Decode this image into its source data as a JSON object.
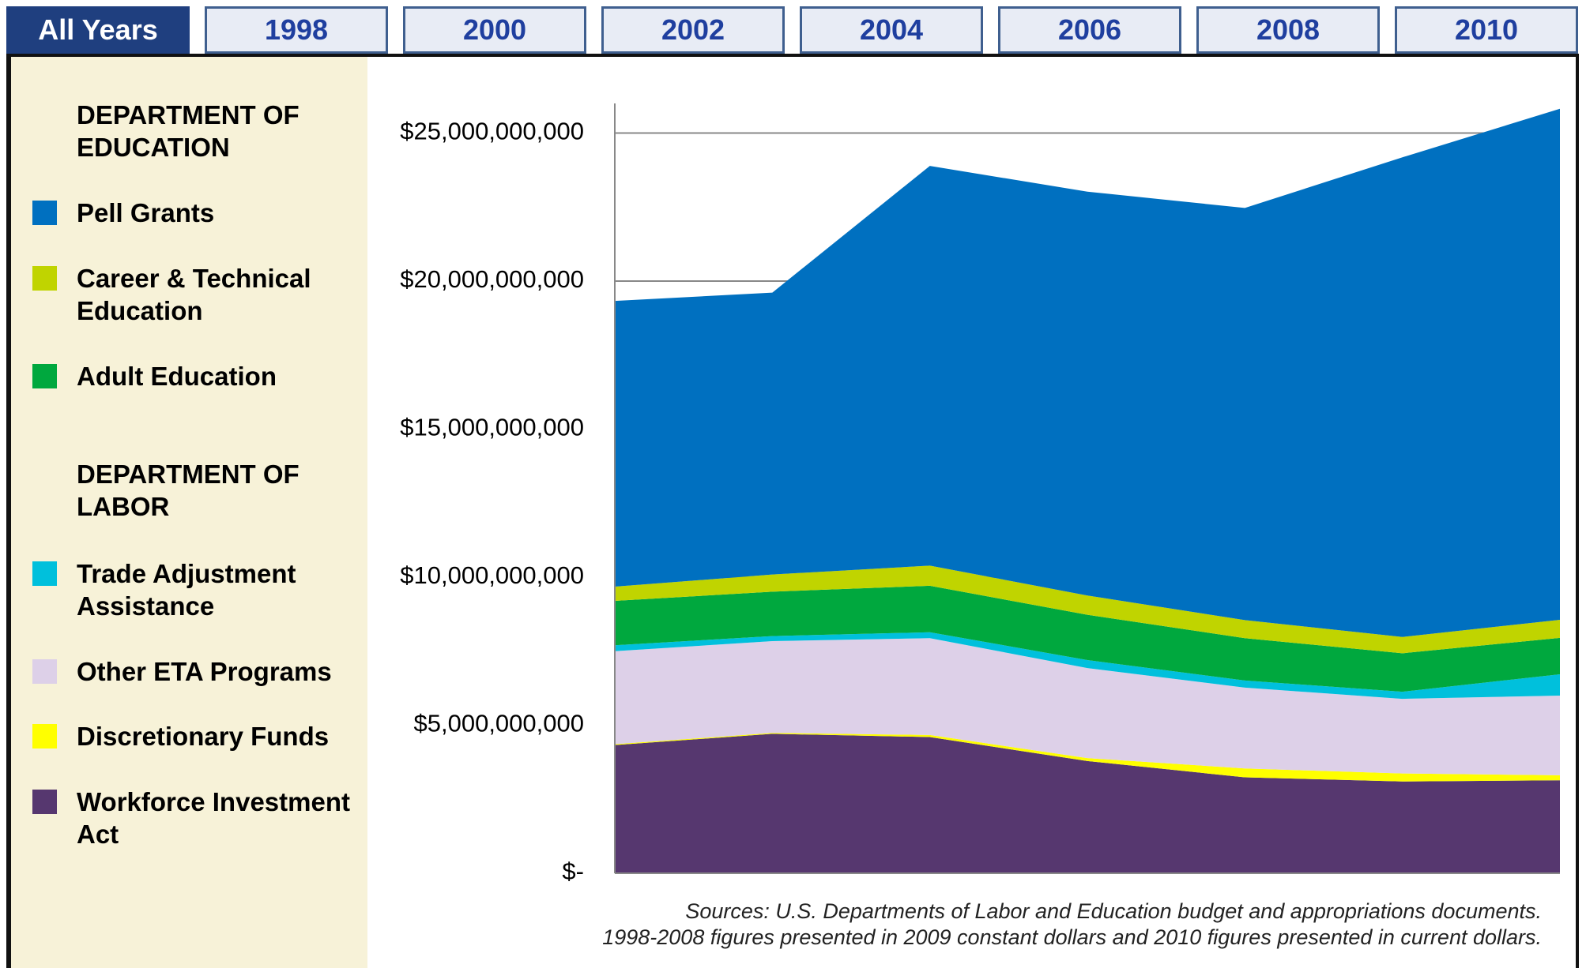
{
  "tabs": [
    "All Years",
    "1998",
    "2000",
    "2002",
    "2004",
    "2006",
    "2008",
    "2010"
  ],
  "chart_data": {
    "type": "stacked-area",
    "legend_headings": [
      "DEPARTMENT OF EDUCATION",
      "DEPARTMENT OF LABOR"
    ],
    "categories": [
      null,
      null,
      null,
      null,
      null,
      null,
      null
    ],
    "series": [
      {
        "name": "Pell Grants",
        "color": "#0070c0",
        "values": [
          9650000000,
          9520000000,
          13500000000,
          13640000000,
          13920000000,
          16200000000,
          17260000000
        ]
      },
      {
        "name": "Career & Technical Education",
        "color": "#c0d400",
        "values": [
          480000000,
          580000000,
          680000000,
          650000000,
          610000000,
          550000000,
          610000000
        ]
      },
      {
        "name": "Adult Education",
        "color": "#00a83e",
        "values": [
          1500000000,
          1500000000,
          1570000000,
          1530000000,
          1430000000,
          1300000000,
          1230000000
        ]
      },
      {
        "name": "Trade Adjustment Assistance",
        "color": "#00c0dc",
        "values": [
          200000000,
          170000000,
          200000000,
          270000000,
          240000000,
          240000000,
          720000000
        ]
      },
      {
        "name": "Other ETA Programs",
        "color": "#ddd0e8",
        "values": [
          3140000000,
          3100000000,
          3270000000,
          3040000000,
          2730000000,
          2520000000,
          2690000000
        ]
      },
      {
        "name": "Discretionary Funds",
        "color": "#ffff00",
        "values": [
          30000000,
          30000000,
          70000000,
          100000000,
          300000000,
          270000000,
          170000000
        ]
      },
      {
        "name": "Workforce Investment Act",
        "color": "#56376f",
        "values": [
          4330000000,
          4710000000,
          4600000000,
          3790000000,
          3240000000,
          3100000000,
          3140000000
        ]
      }
    ],
    "ylim": [
      0,
      26000000000
    ],
    "yticks": [
      {
        "value": 0,
        "label": "$-"
      },
      {
        "value": 5000000000,
        "label": "$5,000,000,000"
      },
      {
        "value": 10000000000,
        "label": "$10,000,000,000"
      },
      {
        "value": 15000000000,
        "label": "$15,000,000,000"
      },
      {
        "value": 20000000000,
        "label": "$20,000,000,000"
      },
      {
        "value": 25000000000,
        "label": "$25,000,000,000"
      }
    ],
    "grid": true,
    "notes": [
      "Sources: U.S. Departments of Labor and Education budget and appropriations documents.",
      "1998-2008 figures presented in 2009 constant dollars and 2010 figures presented in current dollars."
    ]
  }
}
